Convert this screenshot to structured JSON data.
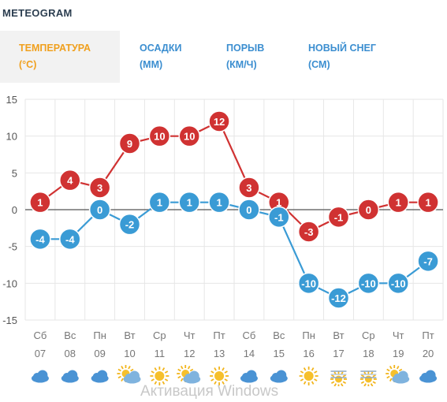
{
  "header": {
    "title": "METEOGRAM"
  },
  "tabs": [
    {
      "line1": "ТЕМПЕРАТУРА",
      "line2": "(°C)",
      "active": true
    },
    {
      "line1": "ОСАДКИ",
      "line2": "(ММ)",
      "active": false
    },
    {
      "line1": "ПОРЫВ",
      "line2": "(КМ/Ч)",
      "active": false
    },
    {
      "line1": "НОВЫЙ СНЕГ",
      "line2": "(СМ)",
      "active": false
    }
  ],
  "chart_data": {
    "type": "line",
    "ylim": [
      -15,
      15
    ],
    "yticks": [
      15,
      10,
      5,
      0,
      -5,
      -10,
      -15
    ],
    "grid": true,
    "categories": [
      {
        "day": "Сб",
        "date": "07"
      },
      {
        "day": "Вс",
        "date": "08"
      },
      {
        "day": "Пн",
        "date": "09"
      },
      {
        "day": "Вт",
        "date": "10"
      },
      {
        "day": "Ср",
        "date": "11"
      },
      {
        "day": "Чт",
        "date": "12"
      },
      {
        "day": "Пт",
        "date": "13"
      },
      {
        "day": "Сб",
        "date": "14"
      },
      {
        "day": "Вс",
        "date": "15"
      },
      {
        "day": "Пн",
        "date": "16"
      },
      {
        "day": "Вт",
        "date": "17"
      },
      {
        "day": "Ср",
        "date": "18"
      },
      {
        "day": "Чт",
        "date": "19"
      },
      {
        "day": "Пт",
        "date": "20"
      }
    ],
    "series": [
      {
        "values": [
          1,
          4,
          3,
          9,
          10,
          10,
          12,
          3,
          1,
          -3,
          -1,
          0,
          1,
          1
        ],
        "color": "#d03232"
      },
      {
        "values": [
          -4,
          -4,
          0,
          -2,
          1,
          1,
          1,
          0,
          -1,
          -10,
          -12,
          -10,
          -10,
          -7
        ],
        "color": "#3a9bd5"
      }
    ],
    "weather_icons": [
      "cloud-icon",
      "cloud-icon",
      "cloud-icon",
      "sun-cloud-icon",
      "sun-icon",
      "sun-cloud-icon",
      "sun-icon",
      "cloud-icon",
      "cloud-icon",
      "sun-icon",
      "snow-sun-icon",
      "snow-sun-icon",
      "sun-cloud-icon",
      "cloud-icon"
    ]
  },
  "watermark": "Активация Windows"
}
